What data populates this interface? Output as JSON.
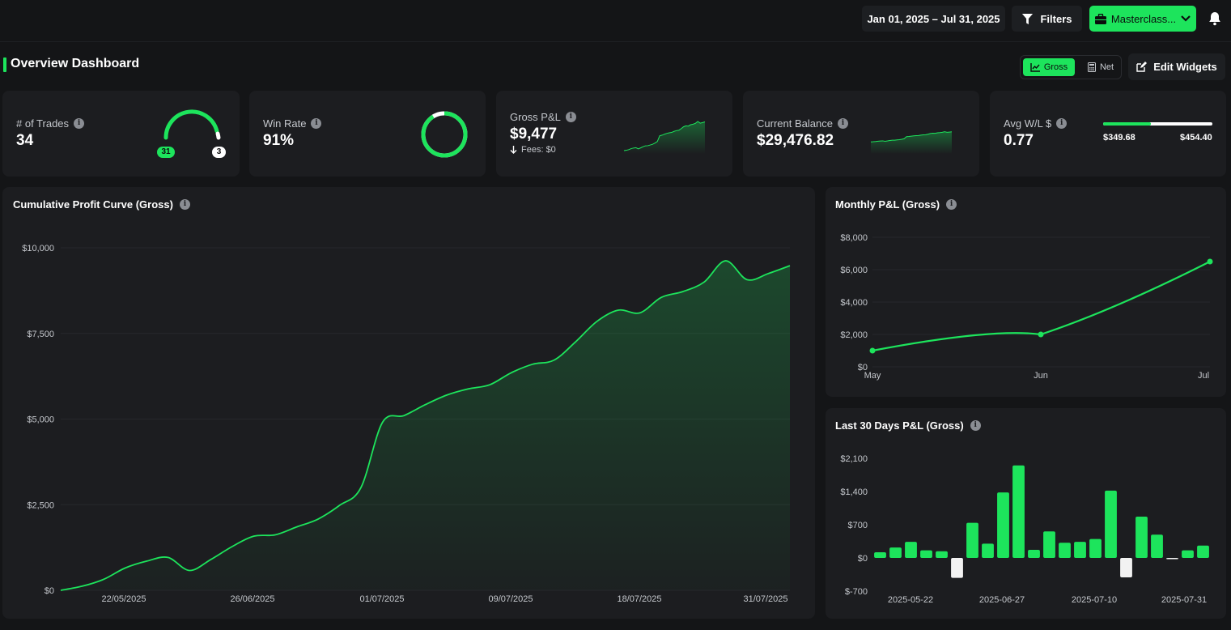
{
  "header": {
    "date_range": "Jan 01, 2025 – Jul 31, 2025",
    "filters_label": "Filters",
    "account_label": "Masterclass...",
    "accent": "#1de45c"
  },
  "page": {
    "title": "Overview Dashboard",
    "toggle": {
      "gross": "Gross",
      "net": "Net"
    },
    "edit_widgets": "Edit Widgets"
  },
  "stats": {
    "trades": {
      "label": "# of Trades",
      "value": "34",
      "wins": "31",
      "losses": "3"
    },
    "win_rate": {
      "label": "Win Rate",
      "value": "91%",
      "fraction": 0.91
    },
    "gross_pnl": {
      "label": "Gross P&L",
      "value": "$9,477",
      "fees": "Fees: $0"
    },
    "balance": {
      "label": "Current Balance",
      "value": "$29,476.82"
    },
    "avg_wl": {
      "label": "Avg W/L $",
      "value": "0.77",
      "avg_win": "$349.68",
      "avg_loss": "$454.40",
      "win_fraction": 0.435
    }
  },
  "chart_data": [
    {
      "type": "area",
      "title": "Cumulative Profit Curve (Gross)",
      "ylim": [
        0,
        10000
      ],
      "yticks": [
        "$0",
        "$2,500",
        "$5,000",
        "$7,500",
        "$10,000"
      ],
      "xticks": [
        "22/05/2025",
        "26/06/2025",
        "01/07/2025",
        "09/07/2025",
        "18/07/2025",
        "31/07/2025"
      ],
      "values": [
        0,
        120,
        320,
        650,
        850,
        960,
        580,
        900,
        1280,
        1580,
        1620,
        1850,
        2080,
        2480,
        3000,
        4900,
        5100,
        5420,
        5700,
        5880,
        6000,
        6350,
        6600,
        6720,
        7250,
        7850,
        8180,
        8100,
        8550,
        8720,
        9000,
        9620,
        9070,
        9250,
        9477
      ]
    },
    {
      "type": "line",
      "title": "Monthly P&L (Gross)",
      "categories": [
        "May",
        "Jun",
        "Jul"
      ],
      "values": [
        1000,
        2000,
        6500
      ],
      "ylim": [
        0,
        8000
      ],
      "yticks": [
        "$0",
        "$2,000",
        "$4,000",
        "$6,000",
        "$8,000"
      ]
    },
    {
      "type": "bar",
      "title": "Last 30 Days P&L (Gross)",
      "ylim": [
        -700,
        2100
      ],
      "yticks": [
        "$-700",
        "$0",
        "$700",
        "$1,400",
        "$2,100"
      ],
      "xticks": [
        "2025-05-22",
        "2025-06-27",
        "2025-07-10",
        "2025-07-31"
      ],
      "values": [
        120,
        220,
        340,
        160,
        140,
        -420,
        740,
        300,
        1380,
        1950,
        170,
        560,
        320,
        340,
        400,
        1420,
        -410,
        870,
        490,
        -20,
        160,
        260
      ]
    }
  ]
}
